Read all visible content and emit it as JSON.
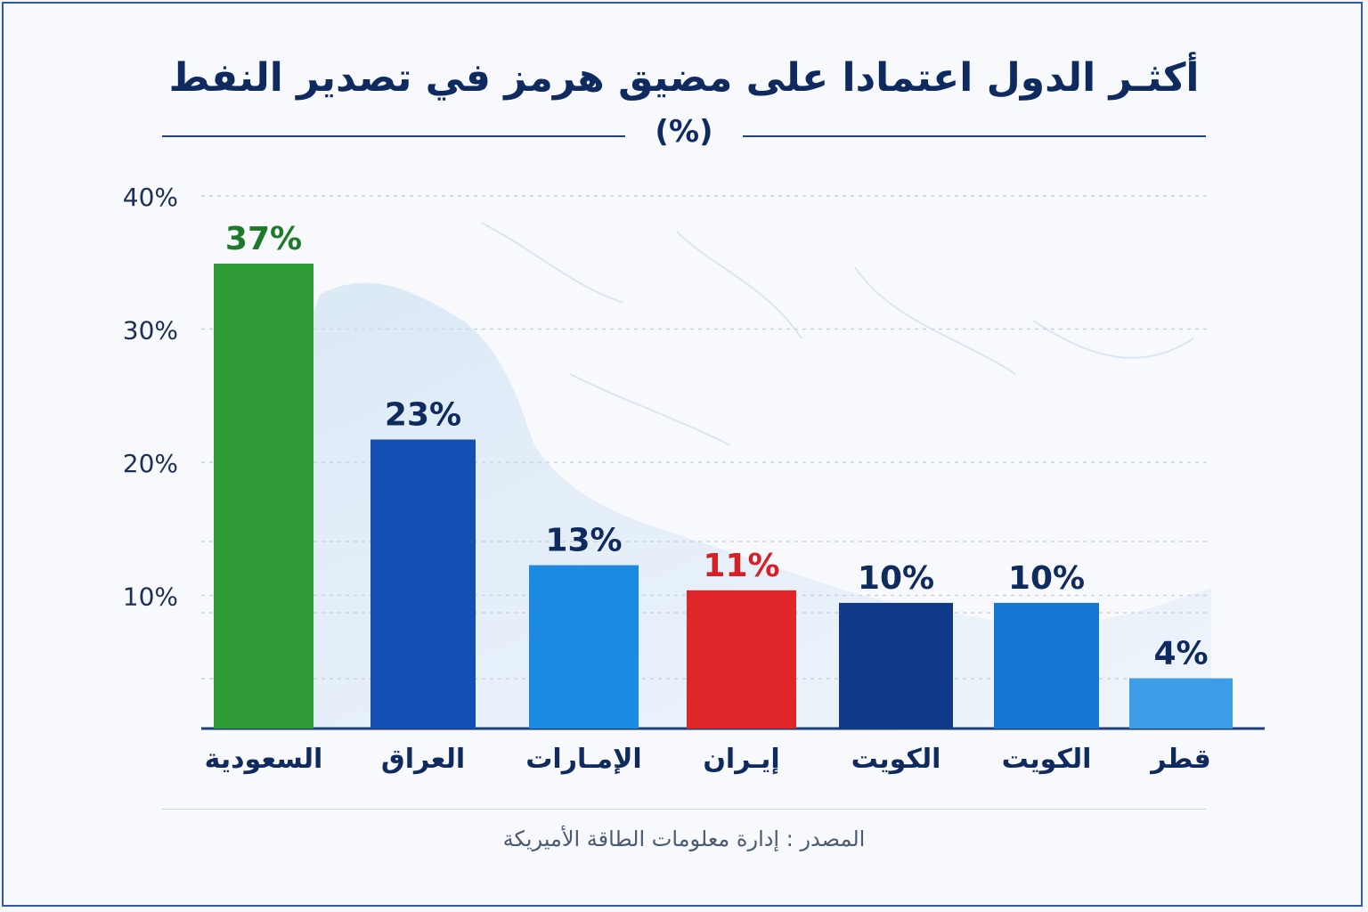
{
  "title": "أكثـر الدول اعتمادا على مضيق هرمز في تصدير النفط",
  "subtitle": "(%)",
  "source": "المصدر : إدارة معلومات الطاقة الأميريكة",
  "chart_data": {
    "type": "bar",
    "categories": [
      "السعودية",
      "العراق",
      "الإمـارات",
      "إيـران",
      "الكويت",
      "الكويت",
      "قطر"
    ],
    "values": [
      37,
      23,
      13,
      11,
      10,
      10,
      4
    ],
    "value_labels": [
      "37%",
      "23%",
      "13%",
      "11%",
      "10%",
      "10%",
      "4%"
    ],
    "ytick_labels": [
      "40%",
      "30%",
      "20%",
      "10%"
    ],
    "ylim": [
      0,
      40
    ],
    "grid": true,
    "colors": [
      "#2e9a35",
      "#1450b4",
      "#1b8ae0",
      "#e02628",
      "#0f3a8a",
      "#1478d2",
      "#3d9de6"
    ],
    "label_colors": [
      "#1e7a2a",
      "#0e2a5e",
      "#0e2a5e",
      "#d81f25",
      "#0e2a5e",
      "#0e2a5e",
      "#0e2a5e"
    ]
  }
}
